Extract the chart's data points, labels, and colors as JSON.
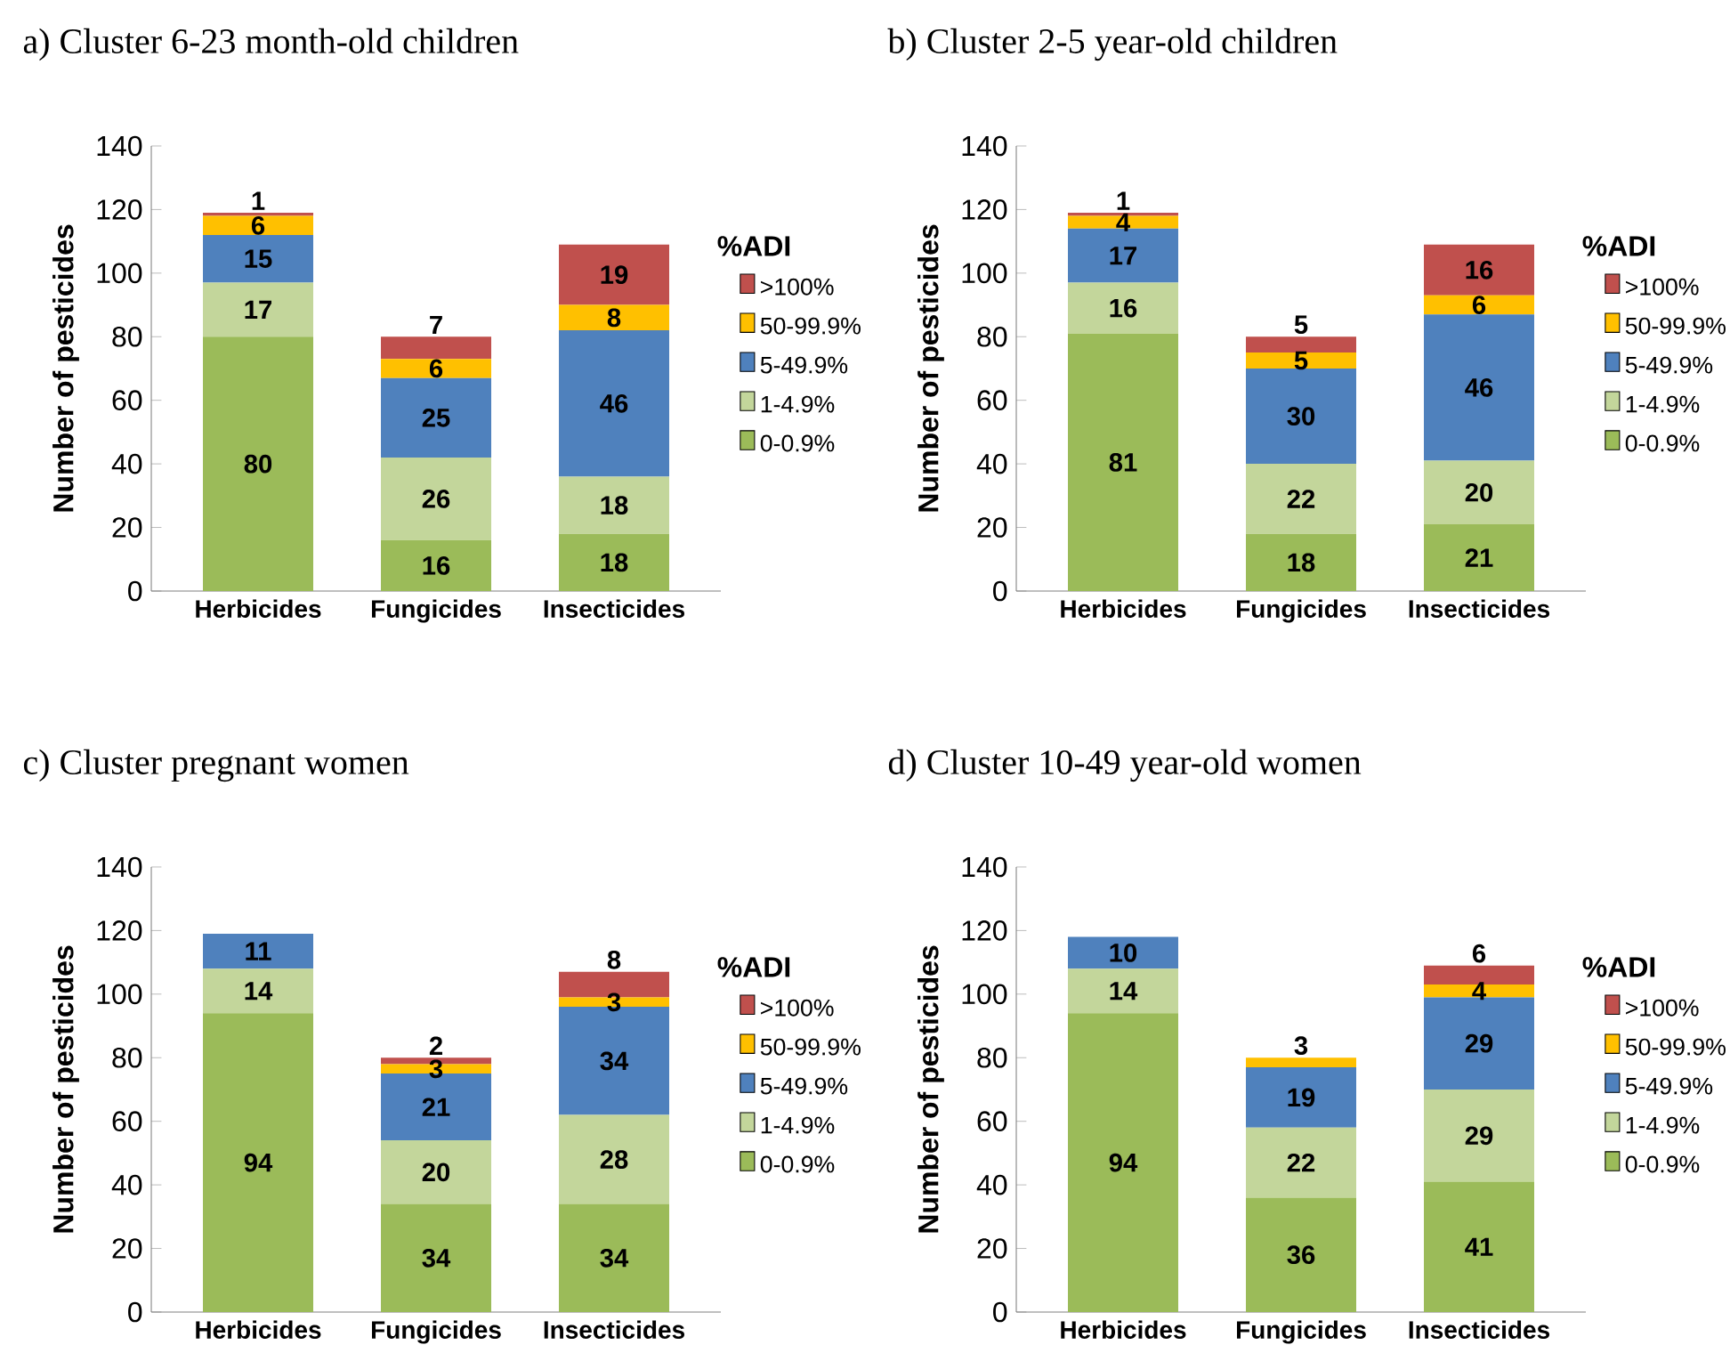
{
  "chart_data": [
    {
      "type": "bar",
      "stacked": true,
      "title": "a) Cluster 6-23 month-old children",
      "ylabel": "Number of pesticides",
      "legend_title": "%ADI",
      "legend": "right",
      "data_labels": true,
      "categories": [
        "Herbicides",
        "Fungicides",
        "Insecticides"
      ],
      "ylim": [
        0,
        140
      ],
      "yticks": [
        0,
        20,
        40,
        60,
        80,
        100,
        120,
        140
      ],
      "series": [
        {
          "name": "0-0.9%",
          "color": "#9bbb59",
          "values": [
            80,
            16,
            18
          ]
        },
        {
          "name": "1-4.9%",
          "color": "#c3d69b",
          "values": [
            17,
            26,
            18
          ]
        },
        {
          "name": "5-49.9%",
          "color": "#4f81bd",
          "values": [
            15,
            25,
            46
          ]
        },
        {
          "name": "50-99.9%",
          "color": "#ffc000",
          "values": [
            6,
            6,
            8
          ]
        },
        {
          "name": ">100%",
          "color": "#c0504d",
          "values": [
            1,
            7,
            19
          ]
        }
      ]
    },
    {
      "type": "bar",
      "stacked": true,
      "title": "b) Cluster 2-5 year-old children",
      "ylabel": "Number of pesticides",
      "legend_title": "%ADI",
      "legend": "right",
      "data_labels": true,
      "categories": [
        "Herbicides",
        "Fungicides",
        "Insecticides"
      ],
      "ylim": [
        0,
        140
      ],
      "yticks": [
        0,
        20,
        40,
        60,
        80,
        100,
        120,
        140
      ],
      "series": [
        {
          "name": "0-0.9%",
          "color": "#9bbb59",
          "values": [
            81,
            18,
            21
          ]
        },
        {
          "name": "1-4.9%",
          "color": "#c3d69b",
          "values": [
            16,
            22,
            20
          ]
        },
        {
          "name": "5-49.9%",
          "color": "#4f81bd",
          "values": [
            17,
            30,
            46
          ]
        },
        {
          "name": "50-99.9%",
          "color": "#ffc000",
          "values": [
            4,
            5,
            6
          ]
        },
        {
          "name": ">100%",
          "color": "#c0504d",
          "values": [
            1,
            5,
            16
          ]
        }
      ]
    },
    {
      "type": "bar",
      "stacked": true,
      "title": "c) Cluster pregnant women",
      "ylabel": "Number of pesticides",
      "legend_title": "%ADI",
      "legend": "right",
      "data_labels": true,
      "categories": [
        "Herbicides",
        "Fungicides",
        "Insecticides"
      ],
      "ylim": [
        0,
        140
      ],
      "yticks": [
        0,
        20,
        40,
        60,
        80,
        100,
        120,
        140
      ],
      "series": [
        {
          "name": "0-0.9%",
          "color": "#9bbb59",
          "values": [
            94,
            34,
            34
          ]
        },
        {
          "name": "1-4.9%",
          "color": "#c3d69b",
          "values": [
            14,
            20,
            28
          ]
        },
        {
          "name": "5-49.9%",
          "color": "#4f81bd",
          "values": [
            11,
            21,
            34
          ]
        },
        {
          "name": "50-99.9%",
          "color": "#ffc000",
          "values": [
            null,
            3,
            3
          ]
        },
        {
          "name": ">100%",
          "color": "#c0504d",
          "values": [
            null,
            2,
            8
          ]
        }
      ]
    },
    {
      "type": "bar",
      "stacked": true,
      "title": "d) Cluster 10-49 year-old women",
      "ylabel": "Number of pesticides",
      "legend_title": "%ADI",
      "legend": "right",
      "data_labels": true,
      "categories": [
        "Herbicides",
        "Fungicides",
        "Insecticides"
      ],
      "ylim": [
        0,
        140
      ],
      "yticks": [
        0,
        20,
        40,
        60,
        80,
        100,
        120,
        140
      ],
      "series": [
        {
          "name": "0-0.9%",
          "color": "#9bbb59",
          "values": [
            94,
            36,
            41
          ]
        },
        {
          "name": "1-4.9%",
          "color": "#c3d69b",
          "values": [
            14,
            22,
            29
          ]
        },
        {
          "name": "5-49.9%",
          "color": "#4f81bd",
          "values": [
            10,
            19,
            29
          ]
        },
        {
          "name": "50-99.9%",
          "color": "#ffc000",
          "values": [
            null,
            3,
            4
          ]
        },
        {
          "name": ">100%",
          "color": "#c0504d",
          "values": [
            null,
            null,
            6
          ]
        }
      ]
    }
  ]
}
